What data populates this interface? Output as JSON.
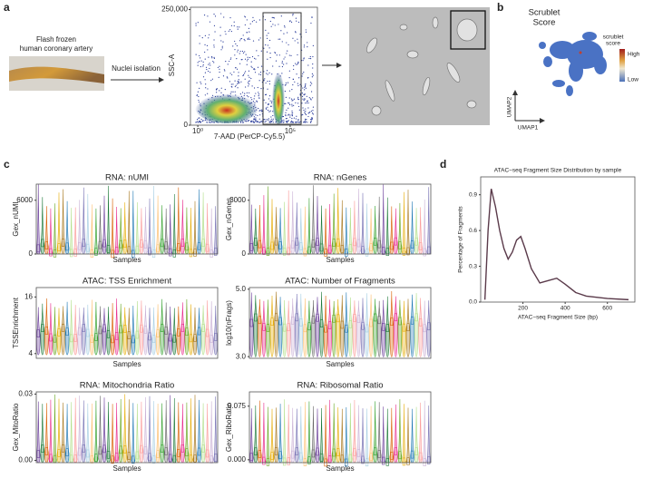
{
  "panel_a": {
    "label": "a",
    "sample_caption": [
      "Flash frozen",
      "human coronary artery"
    ],
    "step": "Nuclei isolation",
    "flow_plot": {
      "type": "scatter",
      "y_label": "SSC-A",
      "x_label": "7-AAD (PerCP-Cy5.5)",
      "log_x": true,
      "xlim": [
        0.4,
        3000000
      ],
      "xticks": [
        {
          "value": 1,
          "label": "10⁰"
        },
        {
          "value": 100000,
          "label": "10⁵"
        }
      ],
      "ylim": [
        0,
        255000
      ],
      "yticks": [
        0,
        {
          "value": 250000,
          "label": "250,000"
        }
      ]
    }
  },
  "panel_b": {
    "label": "b",
    "title": [
      "Scrublet",
      "Score"
    ],
    "legend_title": [
      "scrublet",
      "score"
    ],
    "legend_high": "High",
    "legend_low": "Low",
    "x_axis": "UMAP1",
    "y_axis": "UMAP2"
  },
  "panel_c": {
    "label": "c",
    "charts": [
      {
        "type": "violin",
        "title": "RNA: nUMI",
        "y_label": "Gex_nUMI",
        "x_label": "Samples",
        "ylim": [
          0,
          7800
        ],
        "yticks": [
          0,
          6000
        ]
      },
      {
        "type": "violin",
        "title": "RNA: nGenes",
        "y_label": "Gex_nGenes",
        "x_label": "Samples",
        "ylim": [
          0,
          3900
        ],
        "yticks": [
          0,
          3000
        ]
      },
      {
        "type": "violin",
        "title": "ATAC: TSS Enrichment",
        "y_label": "TSSEnrichment",
        "x_label": "Samples",
        "ylim": [
          3,
          18
        ],
        "yticks": [
          4,
          16
        ]
      },
      {
        "type": "violin",
        "title": "ATAC: Number of Fragments",
        "y_label": "log10(nFrags)",
        "x_label": "Samples",
        "ylim": [
          2.95,
          5.05
        ],
        "yticks": [
          {
            "value": 3,
            "label": "3.0"
          },
          {
            "value": 5,
            "label": "5.0"
          }
        ]
      },
      {
        "type": "violin",
        "title": "RNA: Mitochondria Ratio",
        "y_label": "Gex_MitoRatio",
        "x_label": "Samples",
        "ylim": [
          -0.001,
          0.031
        ],
        "yticks": [
          {
            "value": 0,
            "label": "0.00"
          },
          0.03
        ]
      },
      {
        "type": "violin",
        "title": "RNA: Ribosomal Ratio",
        "y_label": "Gex_RiboRatio",
        "x_label": "Samples",
        "ylim": [
          -0.004,
          0.095
        ],
        "yticks": [
          {
            "value": 0,
            "label": "0.000"
          },
          0.075
        ]
      }
    ]
  },
  "panel_d": {
    "label": "d",
    "chart_data": {
      "type": "line",
      "title": "ATAC−seq Fragment Size Distribution by sample",
      "x_label": "ATAC−seq Fragment Size (bp)",
      "y_label": "Percentage of Fragments",
      "color": "#5a3a4a",
      "x": [
        20,
        35,
        50,
        70,
        90,
        110,
        130,
        150,
        170,
        190,
        210,
        240,
        280,
        320,
        360,
        400,
        450,
        500,
        600,
        700
      ],
      "values": [
        0.02,
        0.6,
        0.95,
        0.8,
        0.6,
        0.45,
        0.36,
        0.42,
        0.52,
        0.55,
        0.45,
        0.28,
        0.16,
        0.18,
        0.2,
        0.15,
        0.08,
        0.05,
        0.03,
        0.02
      ],
      "xlim": [
        0,
        730
      ],
      "xticks": [
        200,
        400,
        600
      ],
      "ylim": [
        0,
        1.05
      ],
      "yticks": [
        {
          "value": 0,
          "label": "0.0"
        },
        0.3,
        0.6,
        0.9
      ]
    }
  }
}
